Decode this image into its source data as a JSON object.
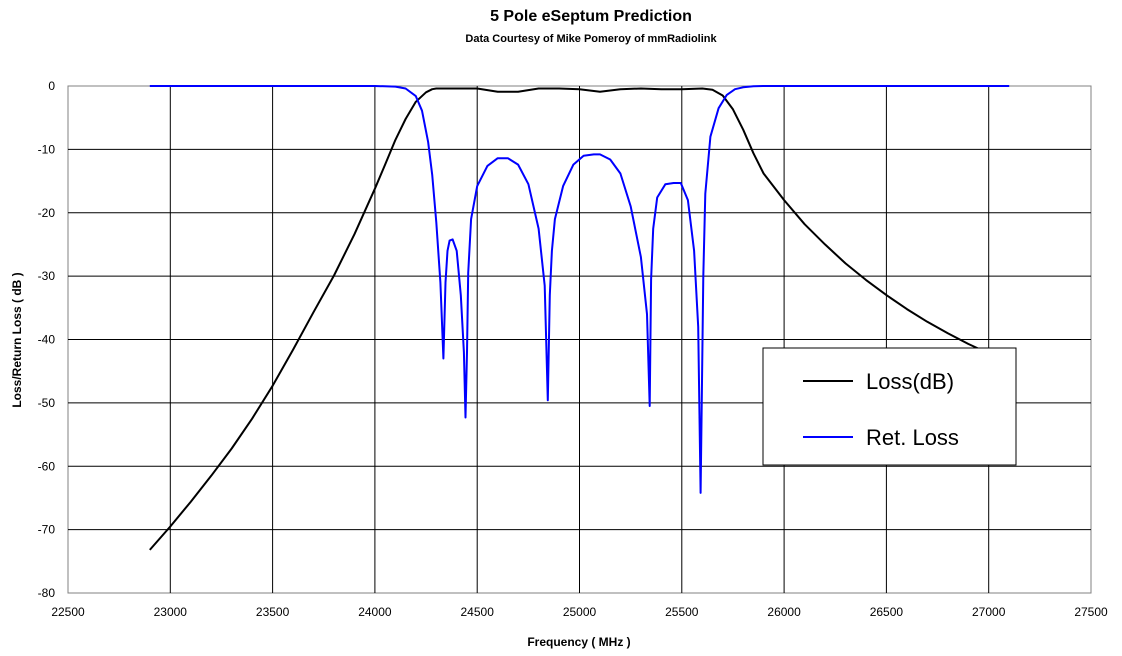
{
  "chart_data": {
    "type": "line",
    "title": "5 Pole eSeptum Prediction",
    "subtitle": "Data Courtesy of Mike Pomeroy of mmRadiolink",
    "xlabel": "Frequency ( MHz )",
    "ylabel": "Loss/Return Loss ( dB )",
    "xlim": [
      22500,
      27500
    ],
    "ylim": [
      -80,
      0
    ],
    "x_ticks": [
      22500,
      23000,
      23500,
      24000,
      24500,
      25000,
      25500,
      26000,
      26500,
      27000,
      27500
    ],
    "y_ticks": [
      0,
      -10,
      -20,
      -30,
      -40,
      -50,
      -60,
      -70,
      -80
    ],
    "grid": true,
    "legend_position": "right",
    "series": [
      {
        "name": "Loss(dB)",
        "color": "#000000",
        "x": [
          22900,
          23000,
          23100,
          23200,
          23300,
          23400,
          23500,
          23600,
          23700,
          23800,
          23900,
          24000,
          24050,
          24100,
          24150,
          24200,
          24250,
          24280,
          24300,
          24330,
          24400,
          24500,
          24600,
          24700,
          24800,
          24900,
          25000,
          25100,
          25200,
          25300,
          25400,
          25500,
          25600,
          25650,
          25700,
          25750,
          25800,
          25850,
          25900,
          26000,
          26100,
          26200,
          26300,
          26400,
          26500,
          26600,
          26700,
          26800,
          26900,
          27000
        ],
        "y": [
          -73.2,
          -69.5,
          -65.6,
          -61.5,
          -57.2,
          -52.5,
          -47.3,
          -41.6,
          -35.7,
          -29.9,
          -23.4,
          -16.2,
          -12.4,
          -8.5,
          -5.2,
          -2.5,
          -1.0,
          -0.5,
          -0.4,
          -0.4,
          -0.4,
          -0.4,
          -0.9,
          -0.9,
          -0.4,
          -0.4,
          -0.5,
          -0.9,
          -0.5,
          -0.4,
          -0.5,
          -0.5,
          -0.4,
          -0.6,
          -1.5,
          -3.7,
          -6.9,
          -10.6,
          -13.8,
          -18.0,
          -21.8,
          -25.0,
          -28.0,
          -30.6,
          -33.0,
          -35.2,
          -37.2,
          -39.0,
          -40.7,
          -42.2
        ]
      },
      {
        "name": "Ret. Loss",
        "color": "#0000ff",
        "x": [
          22900,
          23000,
          23500,
          24000,
          24100,
          24150,
          24200,
          24230,
          24260,
          24280,
          24300,
          24320,
          24335,
          24345,
          24355,
          24365,
          24380,
          24400,
          24420,
          24435,
          24443,
          24450,
          24456,
          24470,
          24500,
          24550,
          24600,
          24650,
          24700,
          24750,
          24800,
          24830,
          24845,
          24855,
          24865,
          24880,
          24920,
          24970,
          25020,
          25070,
          25100,
          25150,
          25200,
          25250,
          25300,
          25330,
          25343,
          25350,
          25360,
          25380,
          25420,
          25460,
          25495,
          25530,
          25560,
          25580,
          25592,
          25598,
          25605,
          25615,
          25640,
          25680,
          25720,
          25760,
          25800,
          25850,
          25900,
          26000,
          26500,
          27000,
          27100
        ],
        "y": [
          0,
          0,
          0,
          0,
          -0.1,
          -0.4,
          -1.6,
          -3.9,
          -8.8,
          -14.0,
          -21.5,
          -31.0,
          -43.0,
          -31.0,
          -26.0,
          -24.4,
          -24.2,
          -26.0,
          -33.0,
          -42.0,
          -52.3,
          -42.0,
          -29.5,
          -21.0,
          -15.8,
          -12.6,
          -11.4,
          -11.4,
          -12.4,
          -15.5,
          -22.5,
          -31.5,
          -49.6,
          -33.0,
          -26.0,
          -21.0,
          -15.8,
          -12.4,
          -11.0,
          -10.8,
          -10.8,
          -11.6,
          -13.8,
          -19.0,
          -27.0,
          -36.0,
          -50.5,
          -30.5,
          -22.5,
          -17.6,
          -15.5,
          -15.3,
          -15.3,
          -18.0,
          -26.0,
          -38.0,
          -64.2,
          -48.0,
          -30.0,
          -17.0,
          -8.0,
          -3.5,
          -1.4,
          -0.5,
          -0.2,
          -0.05,
          0,
          0,
          0,
          0,
          0
        ]
      }
    ]
  }
}
